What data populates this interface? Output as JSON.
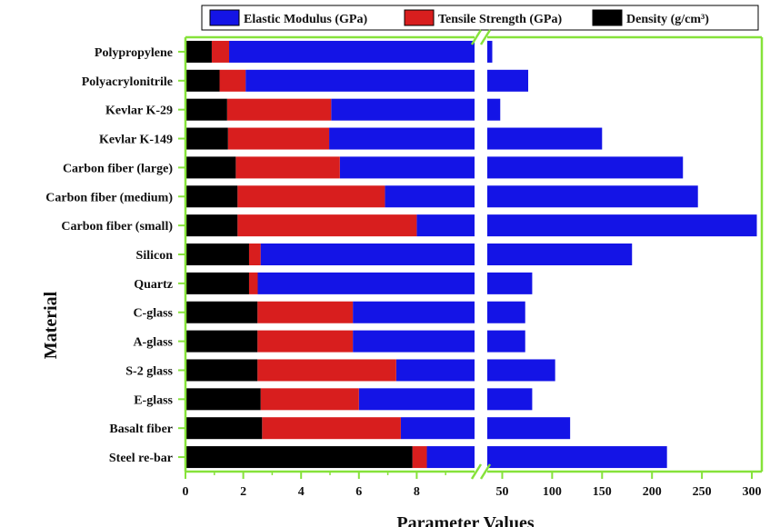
{
  "chart_data": {
    "type": "bar",
    "orientation": "horizontal",
    "stacked": true,
    "broken_x_axis": true,
    "xlabel": "Parameter Values",
    "ylabel": "Material",
    "legend_position": "top",
    "categories": [
      "Polypropylene",
      "Polyacrylonitrile",
      "Kevlar K-29",
      "Kevlar K-149",
      "Carbon fiber (large)",
      "Carbon fiber (medium)",
      "Carbon fiber (small)",
      "Silicon",
      "Quartz",
      "C-glass",
      "A-glass",
      "S-2 glass",
      "E-glass",
      "Basalt fiber",
      "Steel re-bar"
    ],
    "series": [
      {
        "name": "Elastic Modulus (GPa)",
        "color": "#1414e6",
        "values": [
          40,
          76,
          48,
          150,
          231,
          246,
          305,
          180,
          80,
          73,
          73,
          103,
          80,
          118,
          215
        ]
      },
      {
        "name": "Tensile Strength (GPa)",
        "color": "#d81e1e",
        "values": [
          0.6,
          0.9,
          3.6,
          3.5,
          3.6,
          5.1,
          6.2,
          0.4,
          0.3,
          3.3,
          3.3,
          4.8,
          3.4,
          4.8,
          0.5
        ]
      },
      {
        "name": "Density (g/cm³)",
        "color": "#000000",
        "values": [
          0.91,
          1.18,
          1.44,
          1.47,
          1.74,
          1.8,
          1.8,
          2.2,
          2.2,
          2.49,
          2.49,
          2.49,
          2.6,
          2.65,
          7.85
        ]
      }
    ],
    "x_left_segment": {
      "range": [
        0,
        10
      ],
      "ticks": [
        0,
        2,
        4,
        6,
        8
      ]
    },
    "x_right_segment": {
      "range": [
        35,
        310
      ],
      "ticks": [
        50,
        100,
        150,
        200,
        250,
        300
      ]
    }
  }
}
